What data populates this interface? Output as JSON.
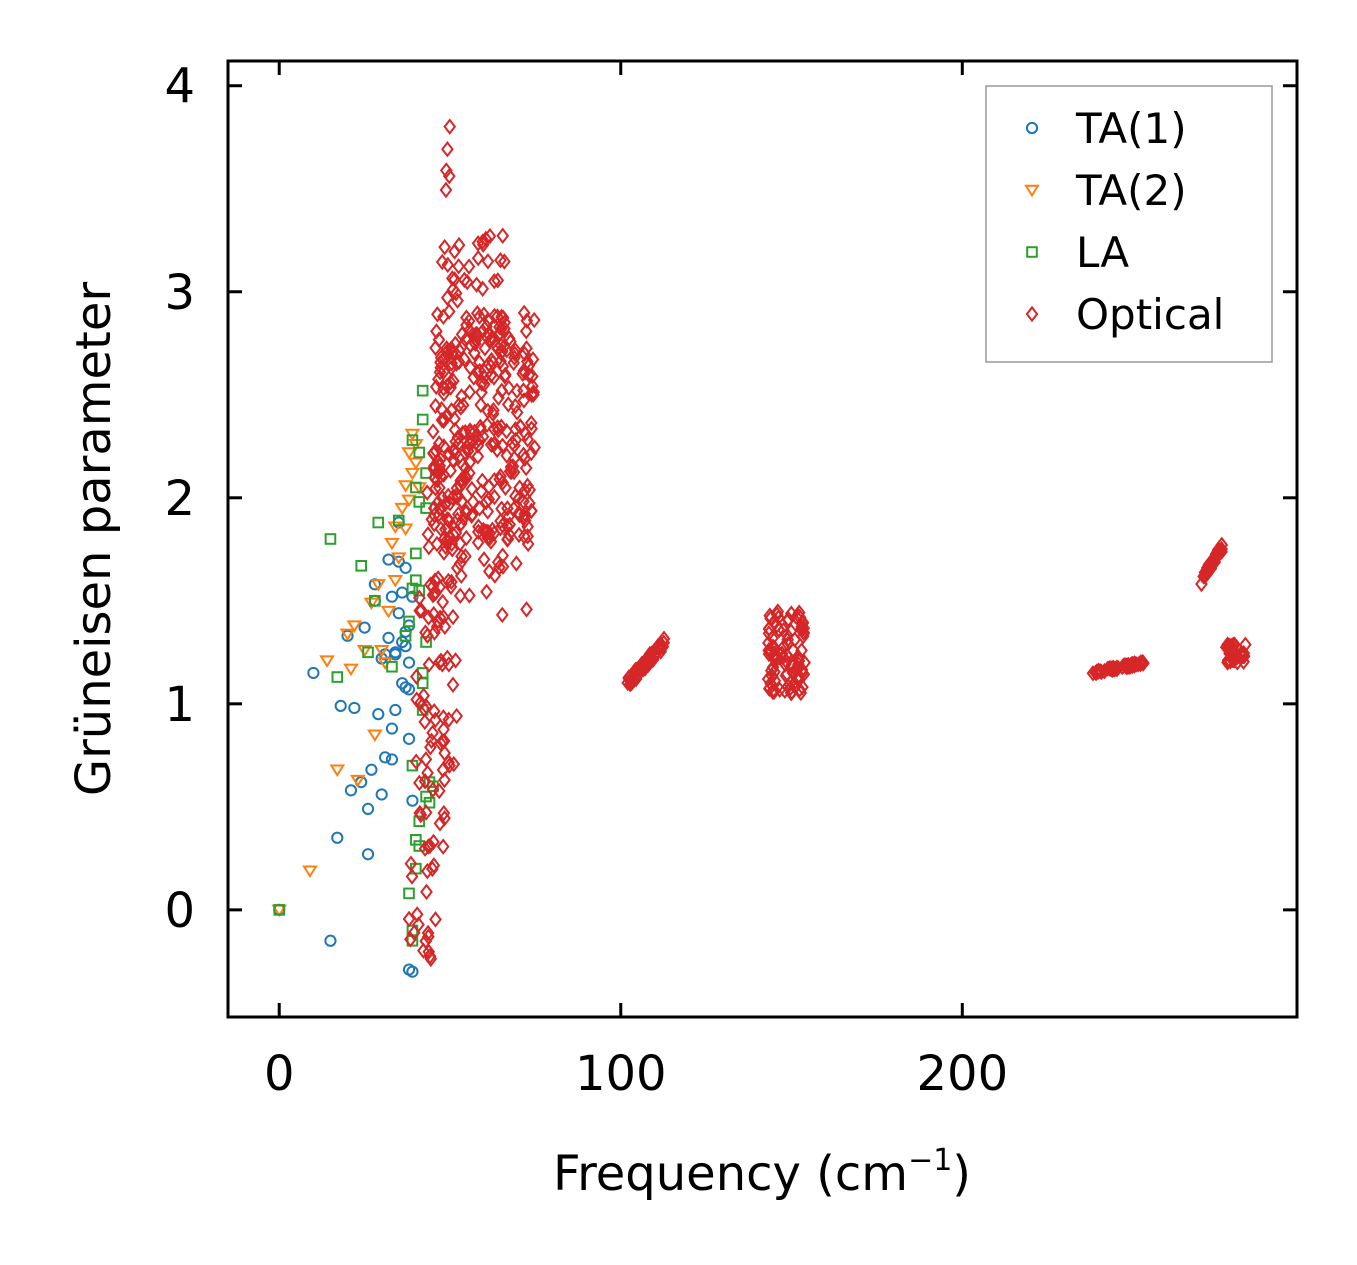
{
  "chart_data": {
    "type": "scatter",
    "xlabel": "Frequency (cm",
    "xlabel_sup": "−1",
    "xlabel_end": ")",
    "ylabel": "Grüneisen parameter",
    "xlim": [
      -15,
      298
    ],
    "ylim": [
      -0.52,
      4.12
    ],
    "xticks": [
      0,
      100,
      200
    ],
    "xtick_labels": [
      "0",
      "100",
      "200"
    ],
    "yticks": [
      0,
      1,
      2,
      3,
      4
    ],
    "ytick_labels": [
      "0",
      "1",
      "2",
      "3",
      "4"
    ],
    "legend_position": "top-right",
    "series": [
      {
        "name": "TA(1)",
        "marker": "circle",
        "color": "#1f77b4",
        "x": [
          0,
          10,
          15,
          17,
          20,
          18,
          21,
          22,
          24,
          25,
          26,
          27,
          28,
          29,
          30,
          31,
          31,
          32,
          32,
          33,
          33,
          34,
          34,
          35,
          35,
          36,
          36,
          37,
          37,
          37,
          38,
          38,
          38,
          39,
          39,
          39,
          34,
          36,
          33,
          35,
          30,
          28,
          26,
          37,
          38,
          38
        ],
        "y": [
          0,
          1.15,
          -0.15,
          0.35,
          1.33,
          0.99,
          0.58,
          0.98,
          0.62,
          1.37,
          0.27,
          0.68,
          1.58,
          0.95,
          0.56,
          0.74,
          1.24,
          1.7,
          1.32,
          1.52,
          0.88,
          1.24,
          0.97,
          1.69,
          1.88,
          1.3,
          1.54,
          1.08,
          1.66,
          1.28,
          0.83,
          1.38,
          1.07,
          0.53,
          1.52,
          -0.3,
          1.25,
          1.1,
          0.73,
          1.44,
          1.22,
          1.5,
          0.49,
          1.35,
          1.2,
          -0.29
        ]
      },
      {
        "name": "TA(2)",
        "marker": "triangle-down",
        "color": "#ff7f0e",
        "x": [
          0,
          9,
          14,
          17,
          20,
          21,
          22,
          23,
          25,
          27,
          28,
          29,
          30,
          31,
          32,
          33,
          34,
          34,
          35,
          36,
          37,
          37,
          38,
          38,
          39,
          39,
          40,
          40,
          41
        ],
        "y": [
          0,
          0.19,
          1.21,
          0.68,
          1.34,
          1.17,
          1.38,
          0.63,
          1.26,
          1.49,
          0.85,
          1.58,
          1.26,
          1.2,
          1.45,
          1.78,
          1.86,
          1.6,
          1.71,
          1.95,
          1.85,
          2.06,
          1.99,
          2.22,
          2.12,
          2.31,
          2.17,
          2.26,
          2.05
        ]
      },
      {
        "name": "LA",
        "marker": "square",
        "color": "#2ca02c",
        "x": [
          0,
          15,
          17,
          24,
          26,
          28,
          29,
          33,
          35,
          37,
          38,
          39,
          40,
          40,
          41,
          41,
          42,
          42,
          43,
          43,
          39,
          40,
          41,
          42,
          43,
          44,
          39,
          40,
          41,
          42,
          38,
          39,
          42,
          43,
          44,
          45,
          41,
          40,
          39
        ],
        "y": [
          0,
          1.8,
          1.13,
          1.67,
          1.25,
          1.5,
          1.88,
          1.18,
          1.89,
          1.33,
          0.08,
          -0.1,
          0.34,
          1.6,
          2.22,
          1.55,
          2.52,
          2.38,
          1.95,
          2.12,
          0.7,
          1.73,
          0.43,
          0.97,
          0.55,
          0.62,
          -0.15,
          0.2,
          0.31,
          1.15,
          1.4,
          1.56,
          1.1,
          1.3,
          0.52,
          0.6,
          1.98,
          2.05,
          2.28
        ]
      },
      {
        "name": "Optical",
        "marker": "diamond",
        "color": "#d62728",
        "points": "generated-dense",
        "clusters": [
          {
            "xr": [
              37,
              46
            ],
            "yr": [
              -0.35,
              0.3
            ],
            "n": 20
          },
          {
            "xr": [
              40,
              52
            ],
            "yr": [
              0.3,
              1.6
            ],
            "n": 70
          },
          {
            "xr": [
              43,
              56
            ],
            "yr": [
              1.5,
              2.3
            ],
            "n": 50
          },
          {
            "xr": [
              45,
              75
            ],
            "yr": [
              1.8,
              2.9
            ],
            "n": 260
          },
          {
            "xr": [
              47,
              66
            ],
            "yr": [
              2.6,
              3.3
            ],
            "n": 60
          },
          {
            "xr": [
              48,
              50
            ],
            "yr": [
              3.4,
              3.9
            ],
            "n": 5
          },
          {
            "xr": [
              48,
              74
            ],
            "yr": [
              1.4,
              2.0
            ],
            "n": 30
          },
          {
            "xr": [
              102,
              113
            ],
            "yr": [
              1.1,
              1.3
            ],
            "n": 60,
            "slope": true
          },
          {
            "xr": [
              143,
              154
            ],
            "yr": [
              1.05,
              1.45
            ],
            "n": 100
          },
          {
            "xr": [
              238,
              253
            ],
            "yr": [
              1.15,
              1.2
            ],
            "n": 60,
            "slope": true
          },
          {
            "xr": [
              270,
              276
            ],
            "yr": [
              1.6,
              1.76
            ],
            "n": 40,
            "slope": true
          },
          {
            "xr": [
              277,
              283
            ],
            "yr": [
              1.2,
              1.3
            ],
            "n": 30
          }
        ]
      }
    ]
  }
}
